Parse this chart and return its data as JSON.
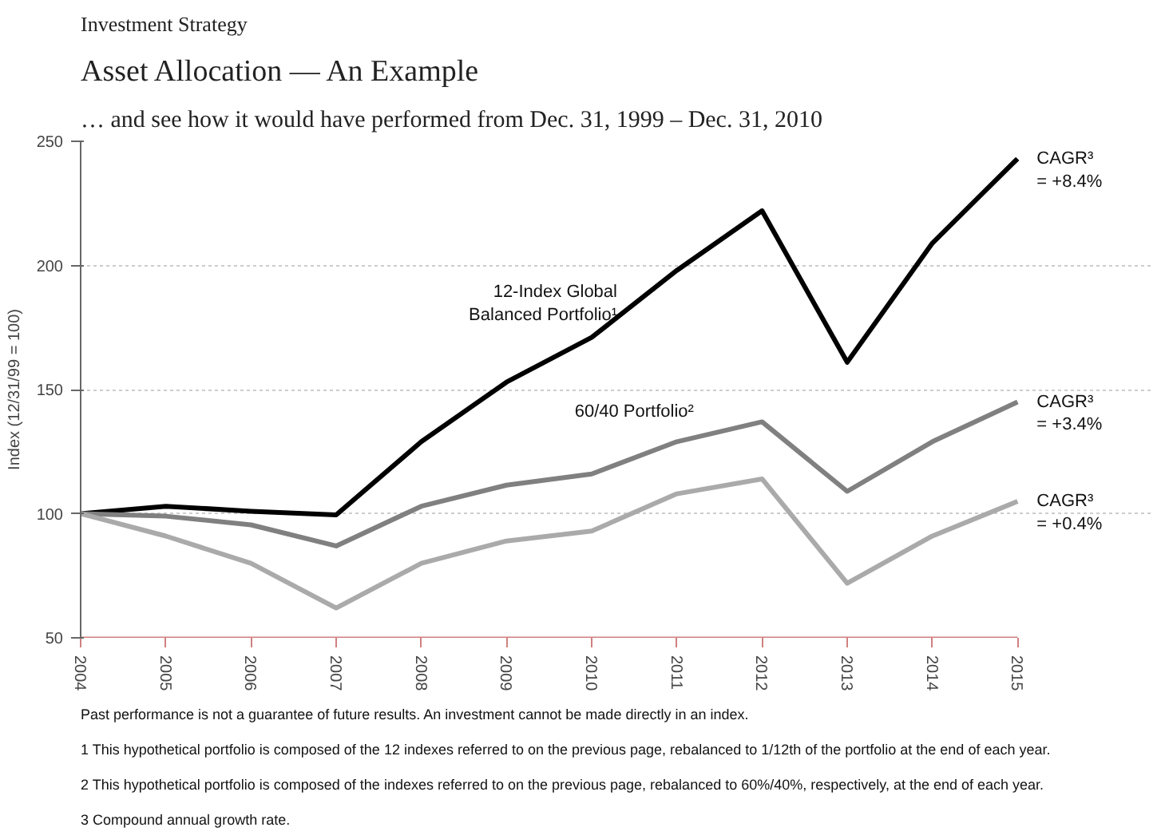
{
  "chart_data": {
    "type": "line",
    "title": "Asset Allocation — An Example",
    "subtitle": "… and see how it would have performed from Dec. 31, 1999 – Dec. 31, 2010",
    "ylabel": "Index (12/31/99 = 100)",
    "categories": [
      "2004",
      "2005",
      "2006",
      "2007",
      "2008",
      "2009",
      "2010",
      "2011",
      "2012",
      "2013",
      "2014",
      "2015"
    ],
    "series": [
      {
        "name": "12-Index Global Balanced Portfolio¹",
        "color": "#000000",
        "values": [
          100,
          103,
          101,
          99.5,
          129,
          153,
          171,
          198,
          222,
          161,
          209,
          243
        ]
      },
      {
        "name": "60/40 Portfolio²",
        "color": "#808080",
        "values": [
          100,
          99,
          95.5,
          87,
          103,
          111.5,
          116,
          129,
          137,
          109,
          129,
          145
        ]
      },
      {
        "color": "#aaaaaa",
        "values": [
          100,
          91,
          80,
          62,
          80,
          89,
          93,
          108,
          114,
          72,
          91,
          105
        ]
      }
    ],
    "ylim": [
      50,
      250
    ],
    "yticks": [
      50,
      100,
      150,
      200,
      250
    ],
    "grid": "y",
    "legend": false,
    "marker": "none",
    "line_style": "solid",
    "annotations": [
      "Investment Strategy",
      {
        "text": "CAGR³\n= +8.4%",
        "x": "2015",
        "y": 243
      },
      {
        "text": "CAGR³\n= +3.4%",
        "x": "2015",
        "y": 145
      },
      {
        "text": "CAGR³\n= +0.4%",
        "x": "2015",
        "y": 105
      },
      "Past performance is not a guarantee of future results. An investment cannot be made directly in an index.",
      "1  This hypothetical portfolio is composed of the 12 indexes referred to on the previous page, rebalanced to 1/12th of the portfolio at the end of each year.",
      "2  This hypothetical portfolio is composed of the indexes referred to on the previous page, rebalanced to 60%/40%, respectively, at the end of each year.",
      "3  Compound annual growth rate."
    ]
  }
}
